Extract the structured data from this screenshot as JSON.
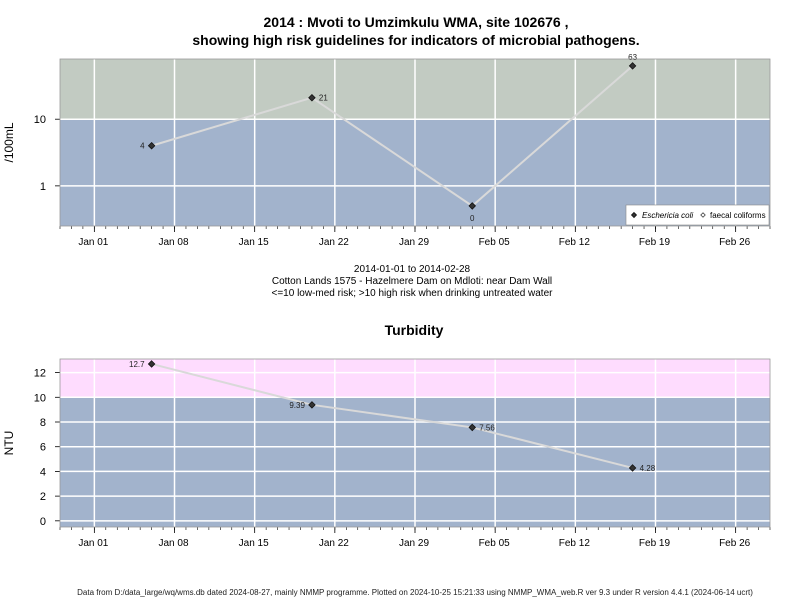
{
  "header": {
    "title_line1": "2014 : Mvoti to Umzimkulu WMA, site 102676 ,",
    "title_line2": "showing high risk guidelines for indicators of microbial pathogens."
  },
  "info": {
    "date_range": "2014-01-01 to 2014-02-28",
    "site": "Cotton Lands 1575 - Hazelmere Dam on Mdloti: near Dam Wall",
    "risk_note": "<=10 low-med risk; >10 high risk when drinking untreated water"
  },
  "footer": {
    "text": "Data from D:/data_large/wq/wms.db dated 2024-08-27, mainly NMMP programme. Plotted on 2024-10-25 15:21:33 using NMMP_WMA_web.R ver 9.3 under R version 4.4.1 (2024-06-14 ucrt)"
  },
  "colors": {
    "panel_low": "#a2b3cc",
    "panel_high_microbial": "#c2cbc2",
    "panel_high_turbidity": "#fedcfe",
    "grid": "#ffffff",
    "line": "#d9d9d9",
    "marker": "#333333"
  },
  "chart_data": [
    {
      "type": "line",
      "title": "",
      "ylabel": "/100mL",
      "yscale": "log",
      "ylim": [
        0.25,
        80
      ],
      "yticks": [
        "1",
        "10"
      ],
      "xlim": [
        "2013-12-29",
        "2014-03-01"
      ],
      "xticks": [
        "Jan 01",
        "Jan 08",
        "Jan 15",
        "Jan 22",
        "Jan 29",
        "Feb 05",
        "Feb 12",
        "Feb 19",
        "Feb 26"
      ],
      "grid": true,
      "threshold": 10,
      "legend_position": "bottom-right",
      "series": [
        {
          "name": "Eschericia coli",
          "x": [
            "2014-01-06",
            "2014-01-20",
            "2014-02-03",
            "2014-02-17"
          ],
          "values": [
            4,
            21,
            0,
            63
          ],
          "labels": [
            "4",
            "21",
            "0",
            "63"
          ]
        },
        {
          "name": "faecal coliforms",
          "x": [],
          "values": []
        }
      ]
    },
    {
      "type": "line",
      "title": "Turbidity",
      "ylabel": "NTU",
      "ylim": [
        -0.5,
        13.1
      ],
      "yticks": [
        "0",
        "2",
        "4",
        "6",
        "8",
        "10",
        "12"
      ],
      "xlim": [
        "2013-12-29",
        "2014-03-01"
      ],
      "xticks": [
        "Jan 01",
        "Jan 08",
        "Jan 15",
        "Jan 22",
        "Jan 29",
        "Feb 05",
        "Feb 12",
        "Feb 19",
        "Feb 26"
      ],
      "grid": true,
      "threshold": 10,
      "series": [
        {
          "name": "",
          "x": [
            "2014-01-06",
            "2014-01-20",
            "2014-02-03",
            "2014-02-17"
          ],
          "values": [
            12.7,
            9.39,
            7.56,
            4.28
          ],
          "labels": [
            "12.7",
            "9.39",
            "7.56",
            "4.28"
          ]
        }
      ]
    }
  ]
}
